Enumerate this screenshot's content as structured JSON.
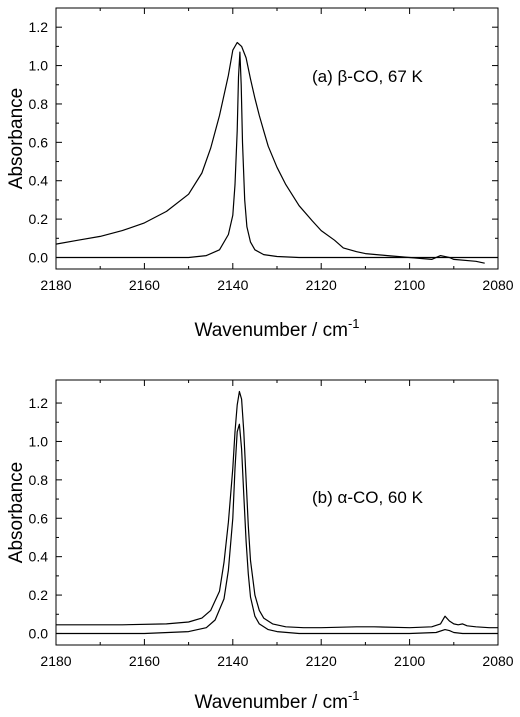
{
  "chart_data": [
    {
      "type": "line",
      "panel": "a",
      "annotation": "(a) β-CO, 67 K",
      "xlabel": "Wavenumber / cm",
      "xlabel_sup": "-1",
      "ylabel": "Absorbance",
      "xlim": [
        2180,
        2080
      ],
      "ylim": [
        -0.06,
        1.3
      ],
      "xticks": [
        2180,
        2160,
        2140,
        2120,
        2100,
        2080
      ],
      "yticks": [
        0.0,
        0.2,
        0.4,
        0.6,
        0.8,
        1.0,
        1.2
      ],
      "xtick_labels": [
        "2180",
        "2160",
        "2140",
        "2120",
        "2100",
        "2080"
      ],
      "ytick_labels": [
        "0.0",
        "0.2",
        "0.4",
        "0.6",
        "0.8",
        "1.0",
        "1.2"
      ],
      "series": [
        {
          "role": "broad-spectrum",
          "x": [
            2180,
            2175,
            2170,
            2165,
            2160,
            2155,
            2150,
            2147,
            2145,
            2143,
            2141,
            2140,
            2139,
            2138,
            2137,
            2136,
            2135,
            2134,
            2133,
            2132,
            2130,
            2128,
            2125,
            2122,
            2120,
            2117,
            2115,
            2112,
            2110,
            2105,
            2100,
            2095,
            2093,
            2091,
            2090,
            2085,
            2083
          ],
          "y": [
            0.07,
            0.09,
            0.11,
            0.14,
            0.18,
            0.24,
            0.33,
            0.44,
            0.57,
            0.74,
            0.95,
            1.08,
            1.12,
            1.1,
            1.04,
            0.93,
            0.83,
            0.74,
            0.66,
            0.58,
            0.47,
            0.38,
            0.27,
            0.19,
            0.14,
            0.09,
            0.05,
            0.03,
            0.02,
            0.01,
            0.0,
            -0.01,
            0.01,
            0.0,
            -0.01,
            -0.02,
            -0.03
          ]
        },
        {
          "role": "narrow-spectrum",
          "x": [
            2180,
            2160,
            2150,
            2146,
            2143,
            2141,
            2140,
            2139.5,
            2139,
            2138.7,
            2138.4,
            2138.1,
            2137.8,
            2137.3,
            2136.8,
            2136,
            2135,
            2133,
            2130,
            2125,
            2120,
            2100,
            2080
          ],
          "y": [
            0.0,
            0.0,
            0.0,
            0.01,
            0.04,
            0.12,
            0.22,
            0.38,
            0.66,
            0.94,
            1.07,
            0.9,
            0.6,
            0.3,
            0.16,
            0.08,
            0.04,
            0.015,
            0.005,
            0.0,
            0.0,
            0.0,
            0.0
          ]
        }
      ]
    },
    {
      "type": "line",
      "panel": "b",
      "annotation": "(b) α-CO, 60 K",
      "xlabel": "Wavenumber / cm",
      "xlabel_sup": "-1",
      "ylabel": "Absorbance",
      "xlim": [
        2180,
        2080
      ],
      "ylim": [
        -0.06,
        1.32
      ],
      "xticks": [
        2180,
        2160,
        2140,
        2120,
        2100,
        2080
      ],
      "yticks": [
        0.0,
        0.2,
        0.4,
        0.6,
        0.8,
        1.0,
        1.2
      ],
      "xtick_labels": [
        "2180",
        "2160",
        "2140",
        "2120",
        "2100",
        "2080"
      ],
      "ytick_labels": [
        "0.0",
        "0.2",
        "0.4",
        "0.6",
        "0.8",
        "1.0",
        "1.2"
      ],
      "series": [
        {
          "role": "upper-spectrum",
          "x": [
            2180,
            2165,
            2155,
            2150,
            2147,
            2145,
            2143,
            2142,
            2141,
            2140,
            2139.5,
            2139,
            2138.5,
            2138,
            2137.5,
            2137,
            2136.5,
            2136,
            2135,
            2134,
            2133,
            2131,
            2128,
            2124,
            2120,
            2112,
            2108,
            2100,
            2095,
            2093,
            2092,
            2091,
            2090,
            2089,
            2088,
            2087,
            2085,
            2082,
            2080
          ],
          "y": [
            0.045,
            0.045,
            0.05,
            0.06,
            0.08,
            0.12,
            0.22,
            0.37,
            0.58,
            0.86,
            1.05,
            1.19,
            1.26,
            1.22,
            1.05,
            0.8,
            0.56,
            0.38,
            0.2,
            0.12,
            0.08,
            0.05,
            0.035,
            0.03,
            0.03,
            0.035,
            0.035,
            0.03,
            0.035,
            0.05,
            0.09,
            0.065,
            0.05,
            0.045,
            0.05,
            0.04,
            0.035,
            0.03,
            0.03
          ]
        },
        {
          "role": "lower-spectrum",
          "x": [
            2180,
            2160,
            2150,
            2146,
            2144,
            2142,
            2141,
            2140,
            2139.5,
            2139,
            2138.5,
            2138,
            2137.5,
            2137,
            2136.5,
            2136,
            2135,
            2134,
            2132,
            2130,
            2125,
            2120,
            2100,
            2094,
            2092,
            2091,
            2090,
            2088,
            2080
          ],
          "y": [
            0.0,
            0.0,
            0.01,
            0.03,
            0.07,
            0.18,
            0.33,
            0.6,
            0.86,
            1.05,
            1.09,
            0.96,
            0.72,
            0.48,
            0.31,
            0.19,
            0.09,
            0.05,
            0.02,
            0.01,
            0.0,
            0.0,
            0.0,
            0.005,
            0.02,
            0.015,
            0.005,
            0.0,
            0.0
          ]
        }
      ]
    }
  ]
}
